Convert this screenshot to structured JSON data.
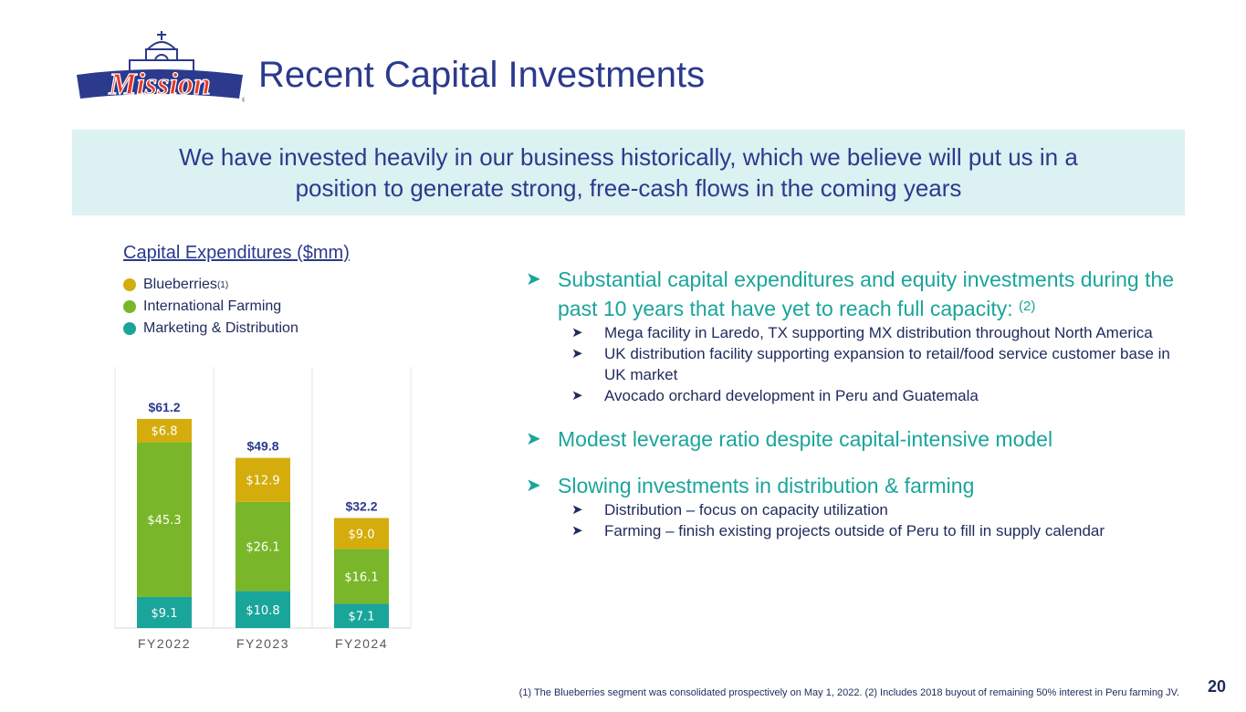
{
  "slide": {
    "logo_text": "Mission",
    "title": "Recent Capital Investments",
    "page_number": "20"
  },
  "banner": {
    "line1": "We have invested heavily in our business historically, which we believe will put us in a",
    "line2": "position to generate strong, free-cash flows in the coming years"
  },
  "legend": [
    {
      "label": "Blueberries",
      "sup": "(1)",
      "color": "#d4ad0c"
    },
    {
      "label": "International Farming",
      "sup": "",
      "color": "#7ab629"
    },
    {
      "label": "Marketing & Distribution",
      "sup": "",
      "color": "#1aa59a"
    }
  ],
  "bullets": [
    {
      "text": "Substantial capital expenditures and equity investments during the past 10 years that have yet to reach full capacity:",
      "sup": "(2)",
      "subs": [
        "Mega facility in Laredo, TX supporting MX distribution throughout North America",
        "UK distribution facility supporting expansion to retail/food service customer base in  UK market",
        "Avocado orchard development in Peru and Guatemala"
      ]
    },
    {
      "text": "Modest leverage ratio despite capital-intensive model",
      "sup": "",
      "subs": []
    },
    {
      "text": "Slowing investments in distribution & farming",
      "sup": "",
      "subs": [
        "Distribution – focus on capacity utilization",
        "Farming – finish existing projects outside of Peru to fill in supply calendar"
      ]
    }
  ],
  "footnote": "(1) The Blueberries segment was consolidated prospectively on May 1, 2022. (2) Includes 2018 buyout of remaining 50% interest in Peru farming JV.",
  "chart_data": {
    "type": "bar",
    "stacked": true,
    "title": "Capital Expenditures ($mm)",
    "categories": [
      "FY2022",
      "FY2023",
      "FY2024"
    ],
    "series": [
      {
        "name": "Marketing & Distribution",
        "color": "#1aa59a",
        "values": [
          9.1,
          10.8,
          7.1
        ],
        "labels": [
          "$9.1",
          "$10.8",
          "$7.1"
        ]
      },
      {
        "name": "International Farming",
        "color": "#7ab629",
        "values": [
          45.3,
          26.1,
          16.1
        ],
        "labels": [
          "$45.3",
          "$26.1",
          "$16.1"
        ]
      },
      {
        "name": "Blueberries",
        "color": "#d4ad0c",
        "values": [
          6.8,
          12.9,
          9.0
        ],
        "labels": [
          "$6.8",
          "$12.9",
          "$9.0"
        ]
      }
    ],
    "totals": [
      61.2,
      49.8,
      32.2
    ],
    "total_labels": [
      "$61.2",
      "$49.8",
      "$32.2"
    ],
    "ylim": [
      0,
      70
    ],
    "grid": false,
    "legend_position": "top-left"
  }
}
